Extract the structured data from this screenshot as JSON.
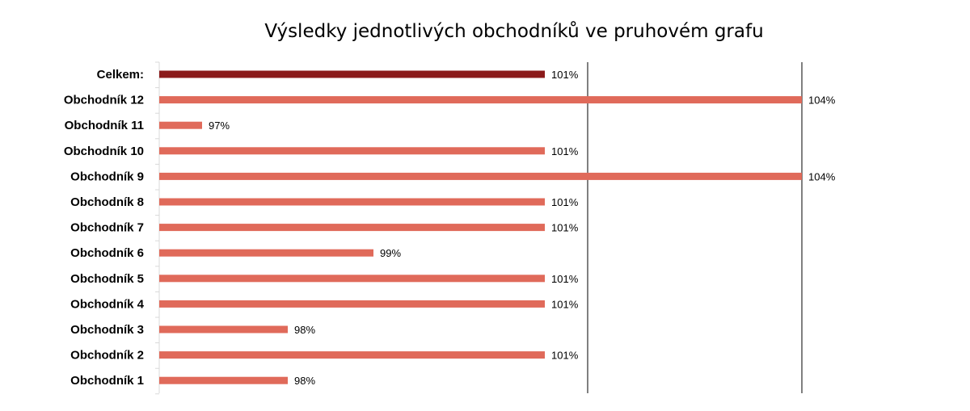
{
  "chart_data": {
    "type": "bar",
    "orientation": "horizontal",
    "title": "Výsledky jednotlivých obchodníků ve pruhovém grafu",
    "categories": [
      "Celkem:",
      "Obchodník 12",
      "Obchodník 11",
      "Obchodník 10",
      "Obchodník 9",
      "Obchodník 8",
      "Obchodník 7",
      "Obchodník 6",
      "Obchodník 5",
      "Obchodník 4",
      "Obchodník 3",
      "Obchodník 2",
      "Obchodník 1"
    ],
    "values": [
      101,
      104,
      97,
      101,
      104,
      101,
      101,
      99,
      101,
      101,
      98,
      101,
      98
    ],
    "value_labels": [
      "101%",
      "104%",
      "97%",
      "101%",
      "104%",
      "101%",
      "101%",
      "99%",
      "101%",
      "101%",
      "98%",
      "101%",
      "98%"
    ],
    "xlim": [
      96.5,
      104
    ],
    "reference_lines": [
      101.5,
      104
    ],
    "grid": false,
    "legend": "none",
    "colors": {
      "total": "#8B1A1A",
      "bars": "#E06A5A",
      "reference": "#000000",
      "axis": "#D9D9D9"
    }
  }
}
